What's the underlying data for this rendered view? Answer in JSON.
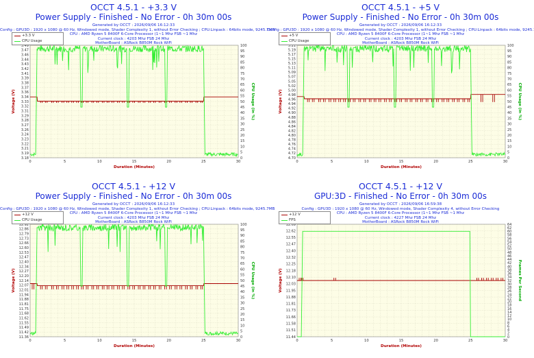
{
  "colors": {
    "voltage": "#a80000",
    "usage": "#33ee33",
    "title": "#1a2bd6",
    "plot_bg": "#fdfde6",
    "grid": "#c8c8b0",
    "axis_label": "#b00000",
    "right_axis_label": "#00aa00"
  },
  "panels": [
    {
      "title_line1": "OCCT 4.5.1 - +3.3 V",
      "title_line2": "Power Supply - Finished - No Error - 0h 30m 00s",
      "info": [
        "Generated by OCCT : 2026/09/06 16:12:33",
        "Config : GPU3D : 1920 x 1080 @ 60 Hz, Windowed mode, Shader Complexity 1, without Error Checking ; CPU:Linpack : 64bits mode, 9245.7MB",
        "CPU : AMD Ryzen 5 8400F 6-Core Processor (1~1 Mhz FSB ~1 Mhz",
        "Current clock : 4203 Mhz FSB 24 Mhz",
        "MotherBoard : ASRock B850M Rock WiFi"
      ],
      "legend": [
        "+3.3 V",
        "CPU Usage"
      ]
    },
    {
      "title_line1": "OCCT 4.5.1 - +5 V",
      "title_line2": "Power Supply - Finished - No Error - 0h 30m 00s",
      "info": [
        "Generated by OCCT : 2026/09/06 16:12:33",
        "Config : GPU3D : 1920 x 1080 @ 60 Hz, Windowed mode, Shader Complexity 1, without Error Checking ; CPU:Linpack : 64bits mode, 9245.7MB",
        "CPU : AMD Ryzen 5 8400F 6-Core Processor (1~1 Mhz FSB ~1 Mhz",
        "Current clock : 4203 Mhz FSB 24 Mhz",
        "MotherBoard : ASRock B850M Rock WiFi"
      ],
      "legend": [
        "+5 V",
        "CPU Usage"
      ]
    },
    {
      "title_line1": "OCCT 4.5.1 - +12 V",
      "title_line2": "Power Supply - Finished - No Error - 0h 30m 00s",
      "info": [
        "Generated by OCCT : 2026/09/06 16:12:33",
        "Config : GPU3D : 1920 x 1080 @ 60 Hz, Windowed mode, Shader Complexity 1, without Error Checking ; CPU:Linpack : 64bits mode, 9245.7MB",
        "CPU : AMD Ryzen 5 8400F 6-Core Processor (1~1 Mhz FSB ~1 Mhz",
        "Current clock : 4203 Mhz FSB 24 Mhz",
        "MotherBoard : ASRock B850M Rock WiFi"
      ],
      "legend": [
        "+12 V",
        "CPU Usage"
      ]
    },
    {
      "title_line1": "OCCT 4.5.1 - +12 V",
      "title_line2": "GPU:3D - Finished - No Error - 0h 30m 00s",
      "info": [
        "Generated by OCCT : 2026/09/06 16:59:38",
        "Config : GPU3D : 1920 x 1080 @ 60 Hz, Windowed mode, Shader Complexity 4, without Error Checking",
        "CPU : AMD Ryzen 5 8400F 6-Core Processor (1~1 Mhz FSB ~1 Mhz",
        "Current clock : 4227 Mhz FSB 24 Mhz",
        "MotherBoard : ASRock B850M Rock WiFi"
      ],
      "legend": [
        "+12 V",
        "FPS"
      ]
    }
  ],
  "chart_data": [
    {
      "type": "line",
      "xlabel": "Duration (Minutes)",
      "ylabel": "Voltage (V)",
      "y2label": "CPU Usage (in %)",
      "xlim": [
        0,
        30
      ],
      "x_ticks": [
        "0",
        "5",
        "10",
        "15",
        "20",
        "25",
        "30"
      ],
      "y_ticks": [
        "3.18",
        "3.19",
        "3.21",
        "3.22",
        "3.23",
        "3.24",
        "3.26",
        "3.27",
        "3.28",
        "3.29",
        "3.31",
        "3.32",
        "3.33",
        "3.34",
        "3.36",
        "3.37",
        "3.38",
        "3.39",
        "3.41",
        "3.42",
        "3.43",
        "3.44",
        "3.46",
        "3.47",
        "3.49"
      ],
      "y2_ticks": [
        "0",
        "5",
        "10",
        "15",
        "20",
        "25",
        "30",
        "35",
        "40",
        "45",
        "50",
        "55",
        "60",
        "65",
        "70",
        "75",
        "80",
        "85",
        "90",
        "95",
        "100"
      ],
      "ylim": [
        3.175,
        3.495
      ],
      "y2lim": [
        0,
        100
      ],
      "series": [
        {
          "name": "+3.3 V",
          "axis": "left",
          "x": [
            0,
            1,
            1.05,
            25,
            25.05,
            30
          ],
          "y": [
            3.348,
            3.348,
            3.336,
            3.336,
            3.348,
            3.348
          ],
          "dips": [
            1.5,
            2.2,
            3.1,
            3.8,
            4.6,
            5.3,
            6.0,
            6.7,
            7.4,
            8.1,
            8.9,
            9.6,
            10.4,
            11.1,
            11.8,
            12.6,
            13.3,
            14.1,
            14.8,
            15.6,
            16.3,
            17.1,
            17.8,
            18.6,
            19.4,
            20.1,
            20.9,
            21.6,
            22.4,
            23.1,
            23.9,
            24.6
          ],
          "dip_value": 3.331
        },
        {
          "name": "CPU Usage",
          "axis": "right",
          "x": [
            0,
            0.8,
            1.0,
            7.2,
            7.3,
            7.5,
            7.6,
            13.9,
            14.0,
            14.2,
            14.3,
            19.4,
            19.5,
            19.7,
            19.8,
            25.0,
            25.2,
            29.9,
            30
          ],
          "y": [
            3,
            3,
            97,
            97,
            45,
            45,
            97,
            97,
            45,
            45,
            97,
            97,
            45,
            45,
            97,
            97,
            3,
            3,
            3
          ]
        }
      ]
    },
    {
      "type": "line",
      "xlabel": "Duration (Minutes)",
      "ylabel": "Voltage (V)",
      "y2label": "CPU Usage (in %)",
      "xlim": [
        0,
        30
      ],
      "x_ticks": [
        "0",
        "5",
        "10",
        "15",
        "20",
        "25",
        "30"
      ],
      "y_ticks": [
        "4.70",
        "4.72",
        "4.74",
        "4.76",
        "4.78",
        "4.80",
        "4.82",
        "4.84",
        "4.86",
        "4.88",
        "4.90",
        "4.92",
        "4.94",
        "4.96",
        "4.98",
        "5.00",
        "5.02",
        "5.05",
        "5.07",
        "5.09",
        "5.11",
        "5.13",
        "5.15",
        "5.17",
        "5.19",
        "5.21"
      ],
      "y2_ticks": [
        "0",
        "5",
        "10",
        "15",
        "20",
        "25",
        "30",
        "35",
        "40",
        "45",
        "50",
        "55",
        "60",
        "65",
        "70",
        "75",
        "80",
        "85",
        "90",
        "95",
        "100"
      ],
      "ylim": [
        4.7,
        5.215
      ],
      "y2lim": [
        0,
        100
      ],
      "series": [
        {
          "name": "+5 V",
          "axis": "left",
          "x": [
            0,
            1,
            1.05,
            25,
            25.05,
            30
          ],
          "y": [
            4.98,
            4.98,
            4.97,
            4.97,
            4.99,
            4.99
          ],
          "dips": [
            1.5,
            2.2,
            3.1,
            3.8,
            4.6,
            5.3,
            6.0,
            6.7,
            7.4,
            8.1,
            8.9,
            9.6,
            10.4,
            11.1,
            11.8,
            12.6,
            13.3,
            14.1,
            14.8,
            15.6,
            16.3,
            17.1,
            17.8,
            18.6,
            19.4,
            20.1,
            20.9,
            21.6,
            22.4,
            23.1,
            23.9,
            24.6,
            26.5,
            28.2
          ],
          "dip_value": 4.955
        },
        {
          "name": "CPU Usage",
          "axis": "right",
          "x": [
            0,
            0.8,
            1.0,
            7.2,
            7.3,
            7.5,
            7.6,
            13.9,
            14.0,
            14.2,
            14.3,
            19.4,
            19.5,
            19.7,
            19.8,
            25.0,
            25.2,
            29.9,
            30
          ],
          "y": [
            3,
            3,
            97,
            97,
            45,
            45,
            97,
            97,
            45,
            45,
            97,
            97,
            45,
            45,
            97,
            97,
            3,
            3,
            3
          ]
        }
      ]
    },
    {
      "type": "line",
      "xlabel": "Duration (Minutes)",
      "ylabel": "Voltage (V)",
      "y2label": "CPU Usage (in %)",
      "xlim": [
        0,
        30
      ],
      "x_ticks": [
        "0",
        "5",
        "10",
        "15",
        "20",
        "25",
        "30"
      ],
      "y_ticks": [
        "11.36",
        "11.42",
        "11.49",
        "11.55",
        "11.62",
        "11.68",
        "11.75",
        "11.81",
        "11.88",
        "11.94",
        "12.01",
        "12.07",
        "12.14",
        "12.20",
        "12.27",
        "12.34",
        "12.40",
        "12.47",
        "12.53",
        "12.60",
        "12.66",
        "12.73",
        "12.79",
        "12.86",
        "12.92"
      ],
      "y2_ticks": [
        "0",
        "5",
        "10",
        "15",
        "20",
        "25",
        "30",
        "35",
        "40",
        "45",
        "50",
        "55",
        "60",
        "65",
        "70",
        "75",
        "80",
        "85",
        "90",
        "95",
        "100"
      ],
      "ylim": [
        11.36,
        12.925
      ],
      "y2lim": [
        0,
        100
      ],
      "series": [
        {
          "name": "+12 V",
          "axis": "left",
          "x": [
            0,
            1,
            1.05,
            25,
            25.05,
            30
          ],
          "y": [
            12.1,
            12.1,
            12.07,
            12.07,
            12.1,
            12.1
          ],
          "dips": [
            0.3,
            1.5,
            2.2,
            3.1,
            3.8,
            4.6,
            5.3,
            6.0,
            6.7,
            7.4,
            8.1,
            8.9,
            9.6,
            10.4,
            11.1,
            11.8,
            12.6,
            13.3,
            14.1,
            14.8,
            15.6,
            16.3,
            17.1,
            17.8,
            18.6,
            19.4,
            20.1,
            20.9,
            21.6,
            22.4,
            23.1,
            23.9,
            24.6
          ],
          "dip_value": 12.02
        },
        {
          "name": "CPU Usage",
          "axis": "right",
          "x": [
            0,
            0.8,
            1.0,
            7.2,
            7.3,
            7.5,
            7.6,
            13.9,
            14.0,
            14.2,
            14.3,
            19.4,
            19.5,
            19.7,
            19.8,
            25.0,
            25.2,
            29.9,
            30
          ],
          "y": [
            3,
            3,
            97,
            97,
            45,
            45,
            97,
            97,
            45,
            45,
            97,
            97,
            45,
            45,
            97,
            97,
            3,
            3,
            3
          ]
        }
      ]
    },
    {
      "type": "line",
      "xlabel": "Duration (Minutes)",
      "ylabel": "Voltage (V)",
      "y2label": "Frames Per Second",
      "xlim": [
        0,
        30
      ],
      "x_ticks": [
        "0",
        "5",
        "10",
        "15",
        "20",
        "25",
        "30"
      ],
      "y_ticks": [
        "11.44",
        "11.51",
        "11.58",
        "11.66",
        "11.73",
        "11.81",
        "11.88",
        "11.95",
        "12.03",
        "12.10",
        "12.18",
        "12.25",
        "12.32",
        "12.40",
        "12.47",
        "12.55",
        "12.62",
        "12.69"
      ],
      "y2_ticks": [
        "0",
        "2",
        "4",
        "6",
        "8",
        "10",
        "12",
        "14",
        "16",
        "18",
        "20",
        "22",
        "24",
        "26",
        "28",
        "30",
        "32",
        "34",
        "36",
        "38",
        "40",
        "42",
        "44",
        "46",
        "48",
        "50",
        "52",
        "54",
        "56",
        "58",
        "60",
        "62",
        "64"
      ],
      "ylim": [
        11.44,
        12.7
      ],
      "y2lim": [
        0,
        64
      ],
      "series": [
        {
          "name": "+12 V",
          "axis": "left",
          "x": [
            0,
            30
          ],
          "y": [
            12.07,
            12.07
          ],
          "dips": [
            0.3,
            0.6,
            5.3,
            25.9,
            26.6,
            27.3,
            28.0,
            28.7,
            29.4
          ],
          "dip_value": 12.1,
          "dips_up": true
        },
        {
          "name": "FPS",
          "axis": "right",
          "x": [
            0,
            0.6,
            0.8,
            24.9,
            25.0,
            30
          ],
          "y": [
            0,
            0,
            60,
            60,
            0,
            0
          ]
        }
      ]
    }
  ]
}
